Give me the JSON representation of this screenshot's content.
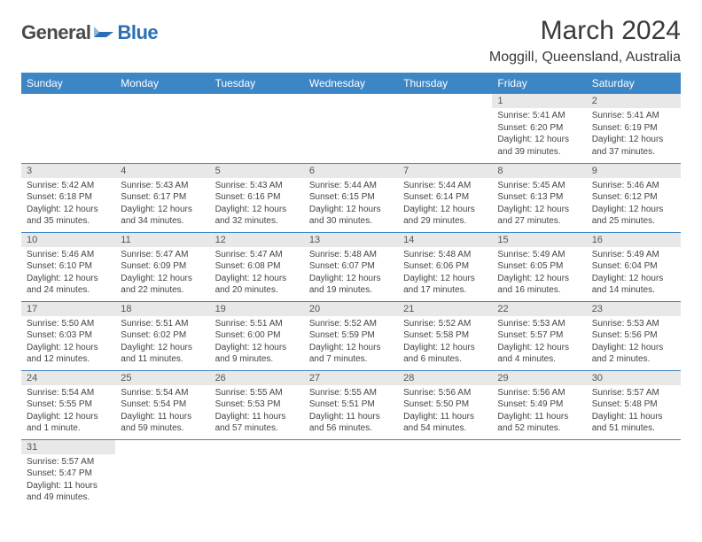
{
  "brand": {
    "part1": "General",
    "part2": "Blue"
  },
  "title": "March 2024",
  "location": "Moggill, Queensland, Australia",
  "colors": {
    "header_bg": "#3d86c6",
    "header_text": "#ffffff",
    "daynum_bg": "#e8e8e8",
    "row_divider": "#3d86c6",
    "brand_blue": "#2a6fb5",
    "brand_gray": "#4a4a4a"
  },
  "weekdays": [
    "Sunday",
    "Monday",
    "Tuesday",
    "Wednesday",
    "Thursday",
    "Friday",
    "Saturday"
  ],
  "weeks": [
    [
      null,
      null,
      null,
      null,
      null,
      {
        "n": "1",
        "sr": "Sunrise: 5:41 AM",
        "ss": "Sunset: 6:20 PM",
        "d1": "Daylight: 12 hours",
        "d2": "and 39 minutes."
      },
      {
        "n": "2",
        "sr": "Sunrise: 5:41 AM",
        "ss": "Sunset: 6:19 PM",
        "d1": "Daylight: 12 hours",
        "d2": "and 37 minutes."
      }
    ],
    [
      {
        "n": "3",
        "sr": "Sunrise: 5:42 AM",
        "ss": "Sunset: 6:18 PM",
        "d1": "Daylight: 12 hours",
        "d2": "and 35 minutes."
      },
      {
        "n": "4",
        "sr": "Sunrise: 5:43 AM",
        "ss": "Sunset: 6:17 PM",
        "d1": "Daylight: 12 hours",
        "d2": "and 34 minutes."
      },
      {
        "n": "5",
        "sr": "Sunrise: 5:43 AM",
        "ss": "Sunset: 6:16 PM",
        "d1": "Daylight: 12 hours",
        "d2": "and 32 minutes."
      },
      {
        "n": "6",
        "sr": "Sunrise: 5:44 AM",
        "ss": "Sunset: 6:15 PM",
        "d1": "Daylight: 12 hours",
        "d2": "and 30 minutes."
      },
      {
        "n": "7",
        "sr": "Sunrise: 5:44 AM",
        "ss": "Sunset: 6:14 PM",
        "d1": "Daylight: 12 hours",
        "d2": "and 29 minutes."
      },
      {
        "n": "8",
        "sr": "Sunrise: 5:45 AM",
        "ss": "Sunset: 6:13 PM",
        "d1": "Daylight: 12 hours",
        "d2": "and 27 minutes."
      },
      {
        "n": "9",
        "sr": "Sunrise: 5:46 AM",
        "ss": "Sunset: 6:12 PM",
        "d1": "Daylight: 12 hours",
        "d2": "and 25 minutes."
      }
    ],
    [
      {
        "n": "10",
        "sr": "Sunrise: 5:46 AM",
        "ss": "Sunset: 6:10 PM",
        "d1": "Daylight: 12 hours",
        "d2": "and 24 minutes."
      },
      {
        "n": "11",
        "sr": "Sunrise: 5:47 AM",
        "ss": "Sunset: 6:09 PM",
        "d1": "Daylight: 12 hours",
        "d2": "and 22 minutes."
      },
      {
        "n": "12",
        "sr": "Sunrise: 5:47 AM",
        "ss": "Sunset: 6:08 PM",
        "d1": "Daylight: 12 hours",
        "d2": "and 20 minutes."
      },
      {
        "n": "13",
        "sr": "Sunrise: 5:48 AM",
        "ss": "Sunset: 6:07 PM",
        "d1": "Daylight: 12 hours",
        "d2": "and 19 minutes."
      },
      {
        "n": "14",
        "sr": "Sunrise: 5:48 AM",
        "ss": "Sunset: 6:06 PM",
        "d1": "Daylight: 12 hours",
        "d2": "and 17 minutes."
      },
      {
        "n": "15",
        "sr": "Sunrise: 5:49 AM",
        "ss": "Sunset: 6:05 PM",
        "d1": "Daylight: 12 hours",
        "d2": "and 16 minutes."
      },
      {
        "n": "16",
        "sr": "Sunrise: 5:49 AM",
        "ss": "Sunset: 6:04 PM",
        "d1": "Daylight: 12 hours",
        "d2": "and 14 minutes."
      }
    ],
    [
      {
        "n": "17",
        "sr": "Sunrise: 5:50 AM",
        "ss": "Sunset: 6:03 PM",
        "d1": "Daylight: 12 hours",
        "d2": "and 12 minutes."
      },
      {
        "n": "18",
        "sr": "Sunrise: 5:51 AM",
        "ss": "Sunset: 6:02 PM",
        "d1": "Daylight: 12 hours",
        "d2": "and 11 minutes."
      },
      {
        "n": "19",
        "sr": "Sunrise: 5:51 AM",
        "ss": "Sunset: 6:00 PM",
        "d1": "Daylight: 12 hours",
        "d2": "and 9 minutes."
      },
      {
        "n": "20",
        "sr": "Sunrise: 5:52 AM",
        "ss": "Sunset: 5:59 PM",
        "d1": "Daylight: 12 hours",
        "d2": "and 7 minutes."
      },
      {
        "n": "21",
        "sr": "Sunrise: 5:52 AM",
        "ss": "Sunset: 5:58 PM",
        "d1": "Daylight: 12 hours",
        "d2": "and 6 minutes."
      },
      {
        "n": "22",
        "sr": "Sunrise: 5:53 AM",
        "ss": "Sunset: 5:57 PM",
        "d1": "Daylight: 12 hours",
        "d2": "and 4 minutes."
      },
      {
        "n": "23",
        "sr": "Sunrise: 5:53 AM",
        "ss": "Sunset: 5:56 PM",
        "d1": "Daylight: 12 hours",
        "d2": "and 2 minutes."
      }
    ],
    [
      {
        "n": "24",
        "sr": "Sunrise: 5:54 AM",
        "ss": "Sunset: 5:55 PM",
        "d1": "Daylight: 12 hours",
        "d2": "and 1 minute."
      },
      {
        "n": "25",
        "sr": "Sunrise: 5:54 AM",
        "ss": "Sunset: 5:54 PM",
        "d1": "Daylight: 11 hours",
        "d2": "and 59 minutes."
      },
      {
        "n": "26",
        "sr": "Sunrise: 5:55 AM",
        "ss": "Sunset: 5:53 PM",
        "d1": "Daylight: 11 hours",
        "d2": "and 57 minutes."
      },
      {
        "n": "27",
        "sr": "Sunrise: 5:55 AM",
        "ss": "Sunset: 5:51 PM",
        "d1": "Daylight: 11 hours",
        "d2": "and 56 minutes."
      },
      {
        "n": "28",
        "sr": "Sunrise: 5:56 AM",
        "ss": "Sunset: 5:50 PM",
        "d1": "Daylight: 11 hours",
        "d2": "and 54 minutes."
      },
      {
        "n": "29",
        "sr": "Sunrise: 5:56 AM",
        "ss": "Sunset: 5:49 PM",
        "d1": "Daylight: 11 hours",
        "d2": "and 52 minutes."
      },
      {
        "n": "30",
        "sr": "Sunrise: 5:57 AM",
        "ss": "Sunset: 5:48 PM",
        "d1": "Daylight: 11 hours",
        "d2": "and 51 minutes."
      }
    ],
    [
      {
        "n": "31",
        "sr": "Sunrise: 5:57 AM",
        "ss": "Sunset: 5:47 PM",
        "d1": "Daylight: 11 hours",
        "d2": "and 49 minutes."
      },
      null,
      null,
      null,
      null,
      null,
      null
    ]
  ]
}
